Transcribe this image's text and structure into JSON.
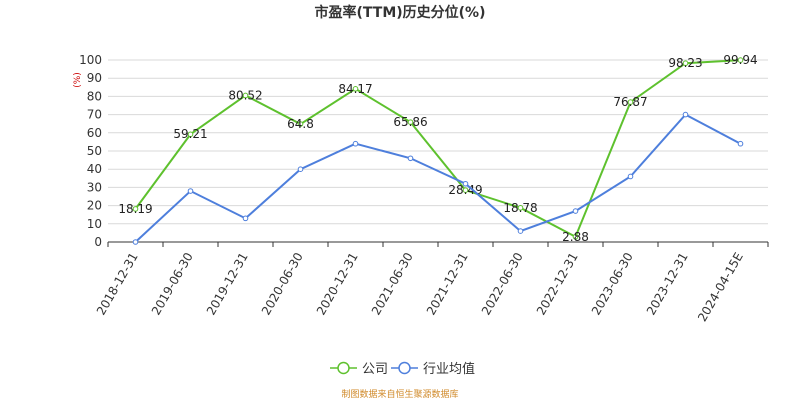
{
  "colors": {
    "company": "#5ec12e",
    "industry": "#4e7fdc",
    "grid": "#d9d9d9",
    "axis": "#333333"
  },
  "source_note": "制图数据来自恒生聚源数据库",
  "legend_marker_icon": "circle-line-icon",
  "chart_data": {
    "type": "line",
    "title": "市盈率(TTM)历史分位(%)",
    "ylabel": "(%)",
    "xlabel": "",
    "ylim": [
      0,
      100
    ],
    "yticks": [
      "0",
      "10",
      "20",
      "30",
      "40",
      "50",
      "60",
      "70",
      "80",
      "90",
      "100"
    ],
    "grid": true,
    "legend_position": "bottom-center",
    "categories": [
      "2018-12-31",
      "2019-06-30",
      "2019-12-31",
      "2020-06-30",
      "2020-12-31",
      "2021-06-30",
      "2021-12-31",
      "2022-06-30",
      "2022-12-31",
      "2023-06-30",
      "2023-12-31",
      "2024-04-15E"
    ],
    "series": [
      {
        "name": "公司",
        "values": [
          18.19,
          59.21,
          80.52,
          64.8,
          84.17,
          65.86,
          28.49,
          18.78,
          2.88,
          76.87,
          98.23,
          99.94
        ],
        "labels": [
          "18.19",
          "59.21",
          "80.52",
          "64.8",
          "84.17",
          "65.86",
          "28.49",
          "18.78",
          "2.88",
          "76.87",
          "98.23",
          "99.94"
        ]
      },
      {
        "name": "行业均值",
        "values": [
          0,
          28,
          13,
          40,
          54,
          46,
          32,
          6,
          17,
          36,
          70,
          54
        ]
      }
    ]
  }
}
